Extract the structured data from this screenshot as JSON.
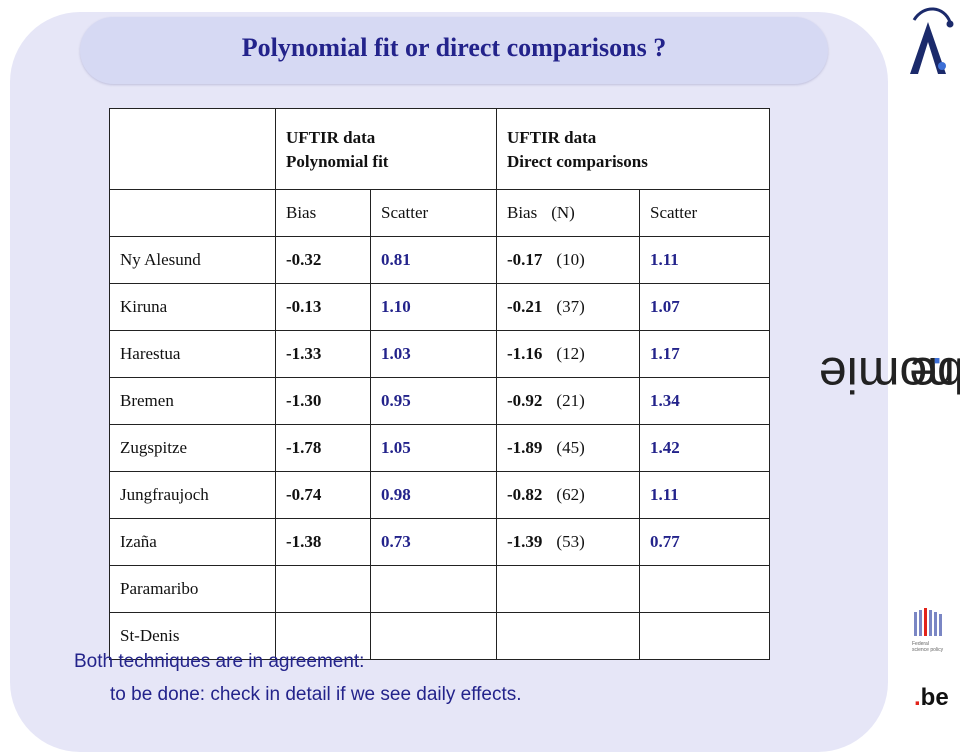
{
  "title": "Polynomial fit or direct comparisons ?",
  "table": {
    "group_headers": [
      {
        "line1": "UFTIR data",
        "line2": "Polynomial fit"
      },
      {
        "line1": "UFTIR data",
        "line2": "Direct comparisons"
      }
    ],
    "sub_headers": {
      "bias": "Bias",
      "scatter": "Scatter",
      "bias_n": "Bias",
      "n": "(N)",
      "scatter2": "Scatter"
    },
    "rows": [
      {
        "site": "Ny Alesund",
        "poly_bias": "-0.32",
        "poly_scatter": "0.81",
        "dc_bias": "-0.17",
        "dc_n": "(10)",
        "dc_scatter": "1.11"
      },
      {
        "site": "Kiruna",
        "poly_bias": "-0.13",
        "poly_scatter": "1.10",
        "dc_bias": "-0.21",
        "dc_n": "(37)",
        "dc_scatter": "1.07"
      },
      {
        "site": "Harestua",
        "poly_bias": "-1.33",
        "poly_scatter": "1.03",
        "dc_bias": "-1.16",
        "dc_n": "(12)",
        "dc_scatter": "1.17"
      },
      {
        "site": "Bremen",
        "poly_bias": "-1.30",
        "poly_scatter": "0.95",
        "dc_bias": "-0.92",
        "dc_n": "(21)",
        "dc_scatter": "1.34"
      },
      {
        "site": "Zugspitze",
        "poly_bias": "-1.78",
        "poly_scatter": "1.05",
        "dc_bias": "-1.89",
        "dc_n": "(45)",
        "dc_scatter": "1.42"
      },
      {
        "site": "Jungfraujoch",
        "poly_bias": "-0.74",
        "poly_scatter": "0.98",
        "dc_bias": "-0.82",
        "dc_n": "(62)",
        "dc_scatter": "1.11"
      },
      {
        "site": "Izaña",
        "poly_bias": "-1.38",
        "poly_scatter": "0.73",
        "dc_bias": "-1.39",
        "dc_n": "(53)",
        "dc_scatter": "0.77"
      },
      {
        "site": "Paramaribo",
        "poly_bias": "",
        "poly_scatter": "",
        "dc_bias": "",
        "dc_n": "",
        "dc_scatter": ""
      },
      {
        "site": "St-Denis",
        "poly_bias": "",
        "poly_scatter": "",
        "dc_bias": "",
        "dc_n": "",
        "dc_scatter": ""
      }
    ]
  },
  "footer": {
    "line1": "Both techniques are in agreement:",
    "line2": "to be done: check in detail if we see daily effects."
  },
  "branding": {
    "aeronomie": "aeronomie",
    "dot": ".",
    "be": "be",
    "fed_line1": "Federal",
    "fed_line2": "science policy",
    "be_logo_dot": ".",
    "be_logo_text": "be"
  },
  "colors": {
    "accent": "#23238b",
    "panel": "#e6e6f7",
    "title_pill": "#d6d9f3",
    "be_dot": "#e2231a",
    "brand_dot": "#3d6fd6"
  }
}
